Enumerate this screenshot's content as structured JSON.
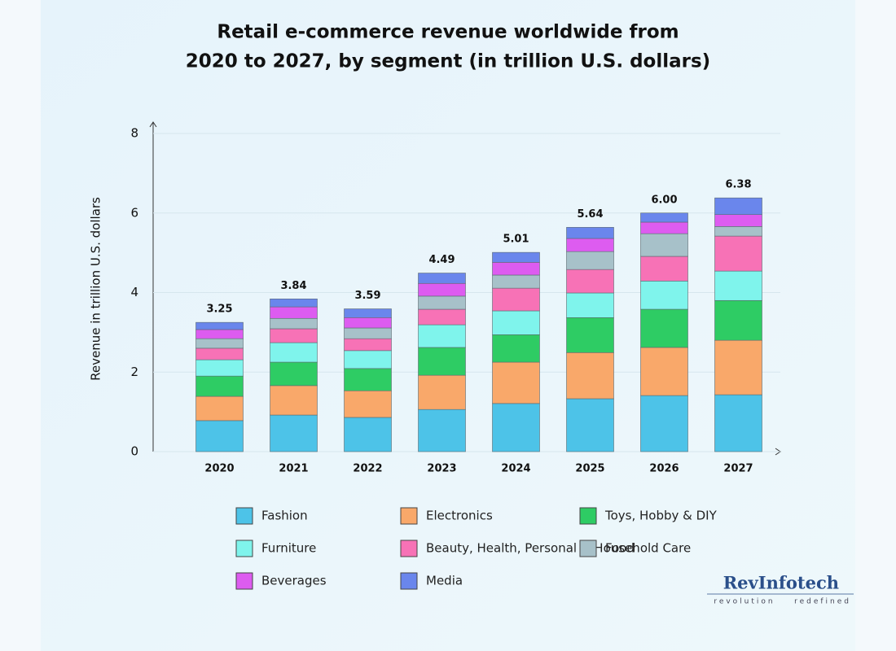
{
  "chart_data": {
    "type": "stacked_bar",
    "title": [
      "Retail e-commerce revenue worldwide from",
      "2020 to 2027, by segment (in trillion U.S. dollars)"
    ],
    "y_label": "Revenue in trillion U.S. dollars",
    "categories": [
      "2020",
      "2021",
      "2022",
      "2023",
      "2024",
      "2025",
      "2026",
      "2027"
    ],
    "series": [
      {
        "name": "Fashion",
        "color": "#4dc3e8",
        "values": [
          0.78,
          0.92,
          0.86,
          1.06,
          1.21,
          1.33,
          1.41,
          1.43
        ]
      },
      {
        "name": "Electronics",
        "color": "#f9a86a",
        "values": [
          0.61,
          0.74,
          0.67,
          0.86,
          1.04,
          1.16,
          1.21,
          1.37
        ]
      },
      {
        "name": "Toys, Hobby & DIY",
        "color": "#2ecc64",
        "values": [
          0.51,
          0.59,
          0.56,
          0.7,
          0.69,
          0.88,
          0.96,
          1.0
        ]
      },
      {
        "name": "Furniture",
        "color": "#7ff4ec",
        "values": [
          0.41,
          0.49,
          0.45,
          0.57,
          0.6,
          0.62,
          0.71,
          0.74
        ]
      },
      {
        "name": "Beauty, Health, Personal & Household Care",
        "color": "#f772b6",
        "values": [
          0.29,
          0.35,
          0.3,
          0.39,
          0.57,
          0.59,
          0.62,
          0.88
        ]
      },
      {
        "name": "Food",
        "color": "#a7c1c9",
        "values": [
          0.24,
          0.26,
          0.27,
          0.33,
          0.33,
          0.45,
          0.57,
          0.24
        ]
      },
      {
        "name": "Beverages",
        "color": "#dd5cf0",
        "values": [
          0.23,
          0.29,
          0.26,
          0.32,
          0.32,
          0.33,
          0.29,
          0.3
        ]
      },
      {
        "name": "Media",
        "color": "#6a86ec",
        "values": [
          0.18,
          0.2,
          0.22,
          0.26,
          0.25,
          0.28,
          0.23,
          0.42
        ]
      }
    ],
    "totals": {
      "values": [
        3.25,
        3.84,
        3.59,
        4.49,
        5.01,
        5.64,
        6.0,
        6.38
      ],
      "value_labels": [
        "3.25",
        "3.84",
        "3.59",
        "4.49",
        "5.01",
        "5.64",
        "6.00",
        "6.38"
      ]
    },
    "ylim": [
      0,
      8
    ],
    "yticks": [
      0,
      2,
      4,
      6,
      8
    ],
    "grid": true
  },
  "watermark": {
    "name": "RevInfotech",
    "tagline": "revolution    redefined"
  }
}
